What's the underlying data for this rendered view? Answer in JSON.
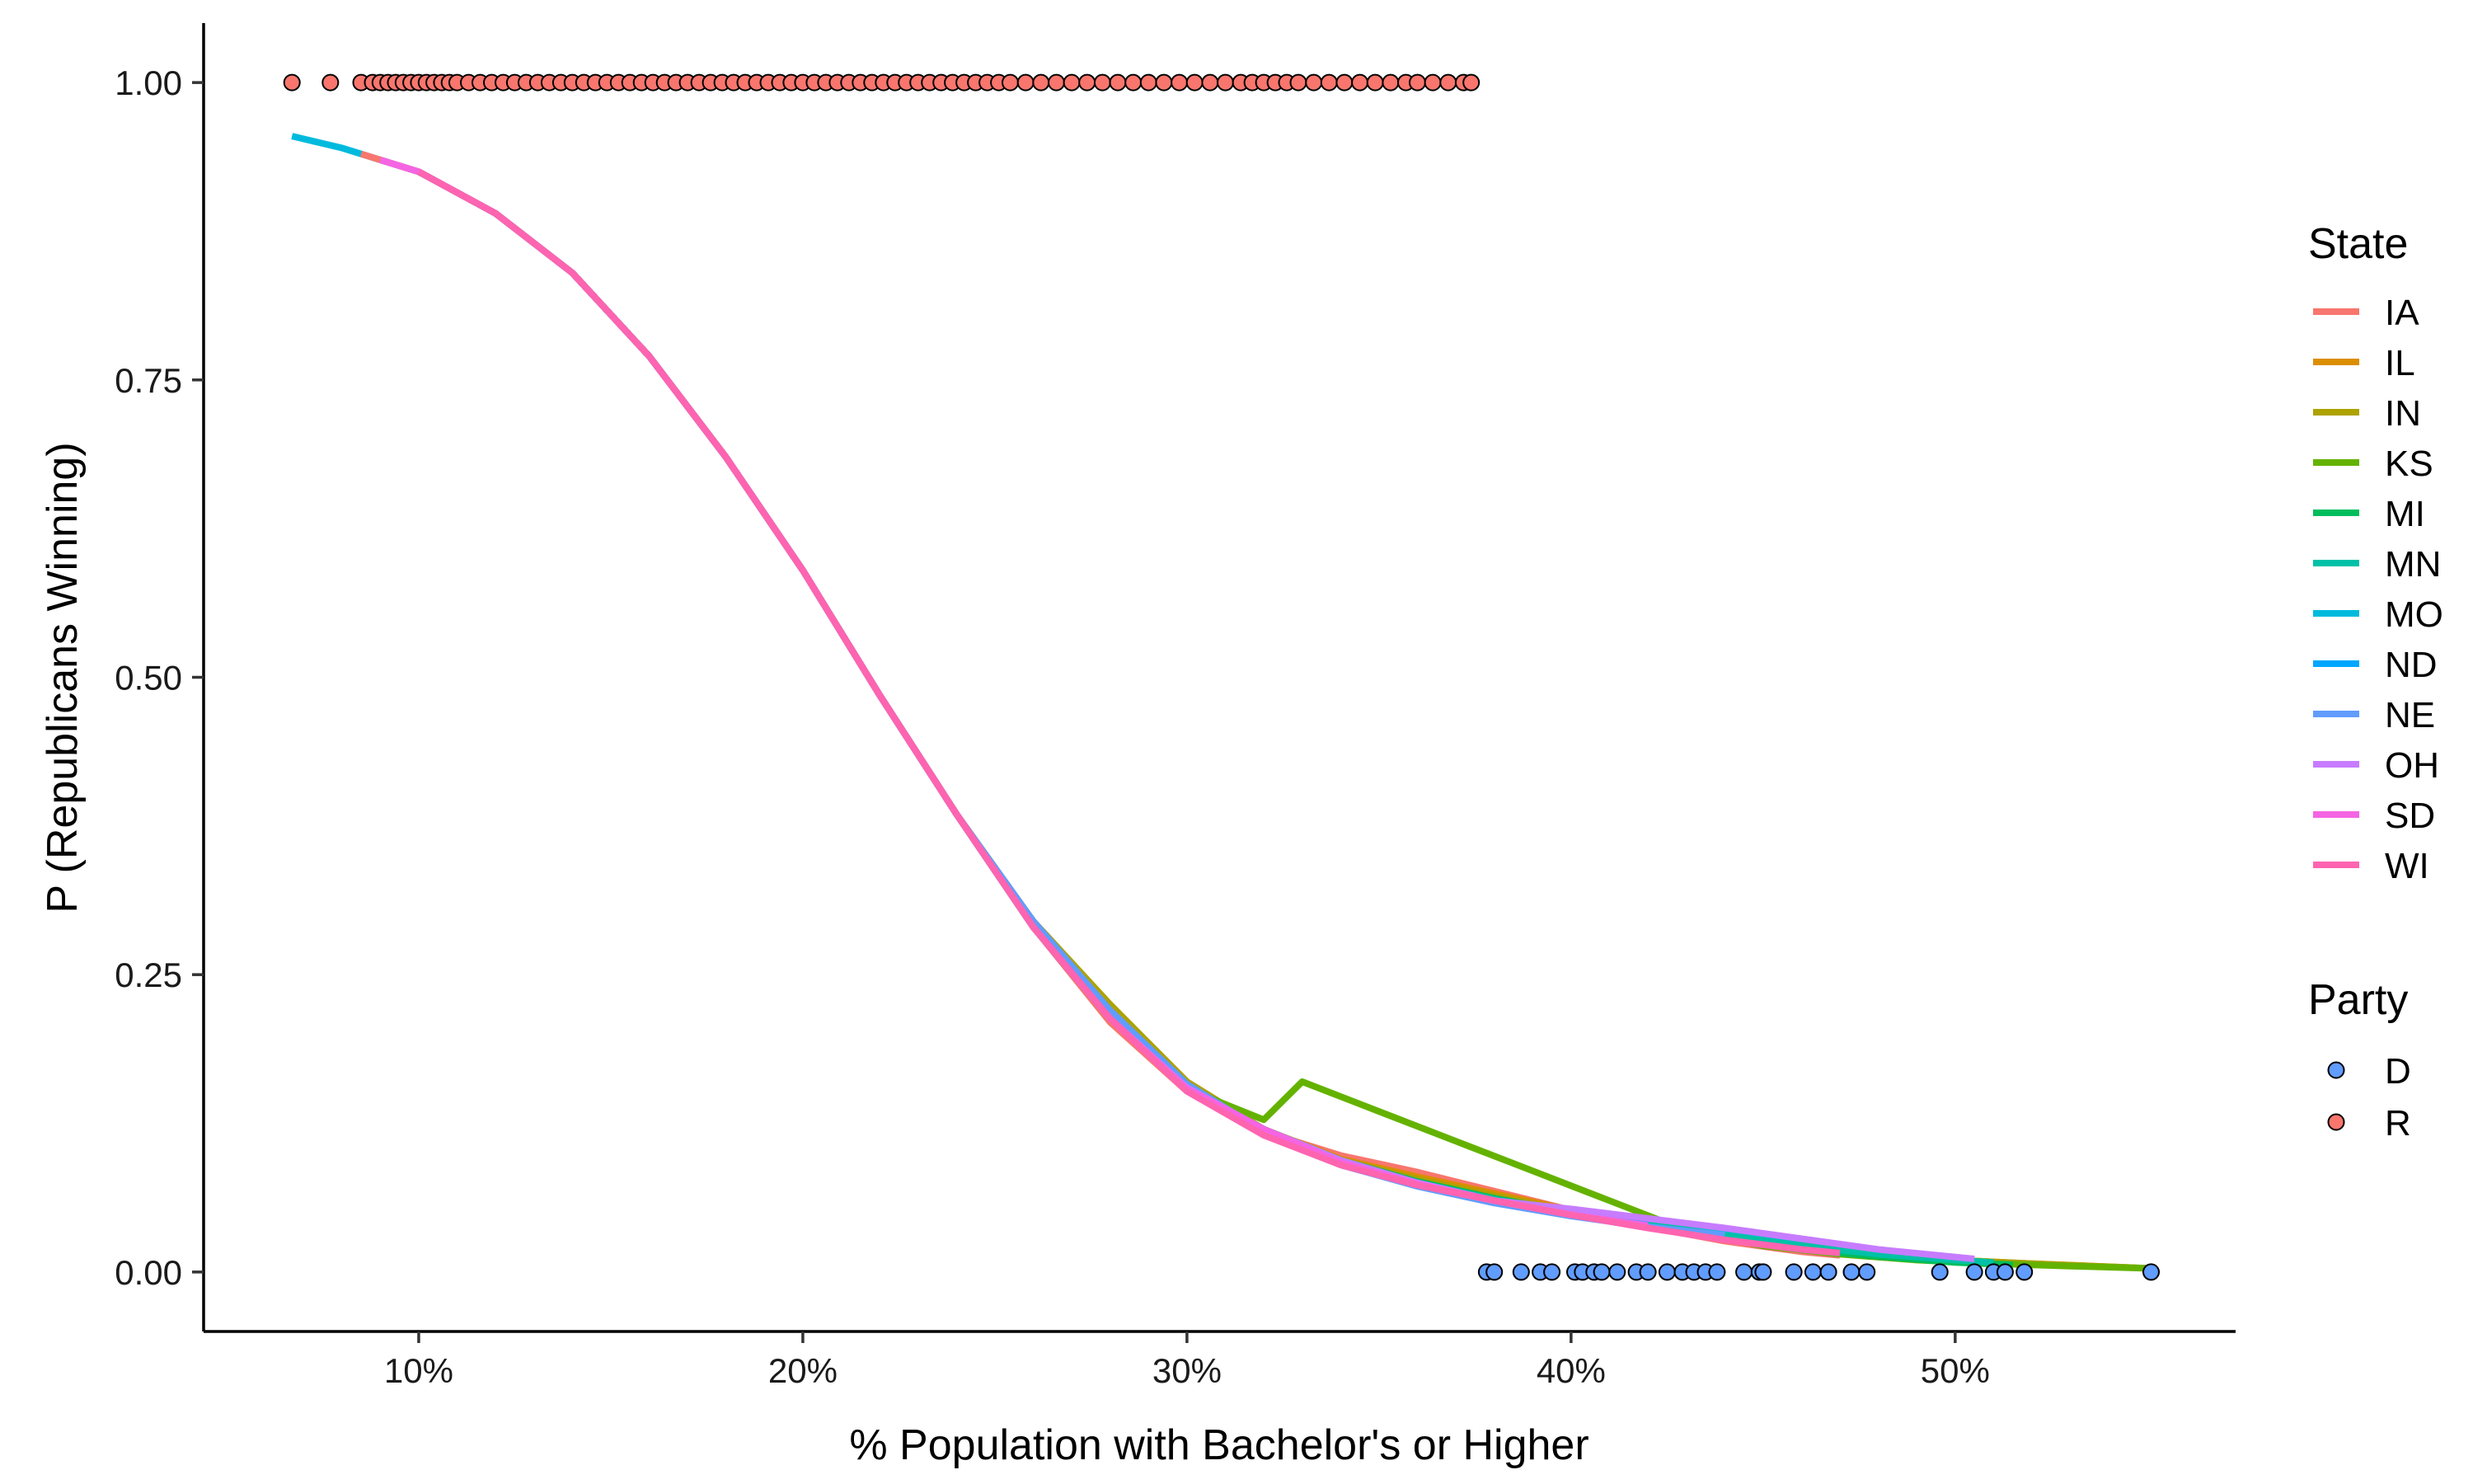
{
  "chart_data": {
    "type": "scatter",
    "xlabel": "% Population with Bachelor's or Higher",
    "ylabel": "P (Republicans Winning)",
    "xlim": [
      4.4,
      57.3
    ],
    "ylim": [
      -0.05,
      1.05
    ],
    "x_ticks": [
      {
        "value": 10,
        "label": "10%"
      },
      {
        "value": 20,
        "label": "20%"
      },
      {
        "value": 30,
        "label": "30%"
      },
      {
        "value": 40,
        "label": "40%"
      },
      {
        "value": 50,
        "label": "50%"
      }
    ],
    "y_ticks": [
      {
        "value": 0.0,
        "label": "0.00"
      },
      {
        "value": 0.25,
        "label": "0.25"
      },
      {
        "value": 0.5,
        "label": "0.50"
      },
      {
        "value": 0.75,
        "label": "0.75"
      },
      {
        "value": 1.0,
        "label": "1.00"
      }
    ],
    "grid": false,
    "legend_position": "right",
    "legends": {
      "state": {
        "title": "State",
        "entries": [
          {
            "label": "IA",
            "color": "#F8766D"
          },
          {
            "label": "IL",
            "color": "#DB8E00"
          },
          {
            "label": "IN",
            "color": "#AEA200"
          },
          {
            "label": "KS",
            "color": "#64B200"
          },
          {
            "label": "MI",
            "color": "#00BD5C"
          },
          {
            "label": "MN",
            "color": "#00C1A7"
          },
          {
            "label": "MO",
            "color": "#00BADE"
          },
          {
            "label": "ND",
            "color": "#00A6FF"
          },
          {
            "label": "NE",
            "color": "#619CFF"
          },
          {
            "label": "OH",
            "color": "#C77CFF"
          },
          {
            "label": "SD",
            "color": "#F564E3"
          },
          {
            "label": "WI",
            "color": "#FF64B0"
          }
        ]
      },
      "party": {
        "title": "Party",
        "entries": [
          {
            "label": "D",
            "color": "#619CFF"
          },
          {
            "label": "R",
            "color": "#F8766D"
          }
        ]
      }
    },
    "point_series": [
      {
        "name": "R",
        "color": "#F8766D",
        "y": 1.0,
        "x": [
          6.7,
          7.7,
          8.5,
          8.8,
          9.0,
          9.2,
          9.4,
          9.6,
          9.8,
          10.0,
          10.2,
          10.4,
          10.6,
          10.8,
          11.0,
          11.3,
          11.6,
          11.9,
          12.2,
          12.5,
          12.8,
          13.1,
          13.4,
          13.7,
          14.0,
          14.3,
          14.6,
          14.9,
          15.2,
          15.5,
          15.8,
          16.1,
          16.4,
          16.7,
          17.0,
          17.3,
          17.6,
          17.9,
          18.2,
          18.5,
          18.8,
          19.1,
          19.4,
          19.7,
          20.0,
          20.3,
          20.6,
          20.9,
          21.2,
          21.5,
          21.8,
          22.1,
          22.4,
          22.7,
          23.0,
          23.3,
          23.6,
          23.9,
          24.2,
          24.5,
          24.8,
          25.1,
          25.4,
          25.8,
          26.2,
          26.6,
          27.0,
          27.4,
          27.8,
          28.2,
          28.6,
          29.0,
          29.4,
          29.8,
          30.2,
          30.6,
          31.0,
          31.4,
          31.7,
          32.0,
          32.3,
          32.6,
          32.9,
          33.3,
          33.7,
          34.1,
          34.5,
          34.9,
          35.3,
          35.7,
          36.0,
          36.4,
          36.8,
          37.2,
          37.4
        ]
      },
      {
        "name": "D",
        "color": "#619CFF",
        "y": 0.0,
        "x": [
          37.8,
          38.0,
          38.7,
          39.2,
          39.5,
          40.1,
          40.3,
          40.6,
          40.8,
          41.2,
          41.7,
          42.0,
          42.5,
          42.9,
          43.2,
          43.5,
          43.8,
          44.5,
          44.9,
          45.0,
          45.8,
          46.3,
          46.7,
          47.3,
          47.7,
          49.6,
          50.5,
          51.0,
          51.3,
          51.8,
          55.1
        ]
      }
    ],
    "curves": [
      {
        "name": "MO",
        "color": "#00BADE",
        "x": [
          6.7,
          8.0,
          9.0,
          10.0,
          12.0,
          14.0,
          16.0,
          18.0,
          20.0,
          22.0,
          24.0,
          26.0,
          28.0,
          30.0,
          32.0,
          34.0,
          36.0,
          38.0,
          40.0,
          42.0,
          44.0,
          46.0,
          48.0,
          50.0,
          51.0
        ],
        "y": [
          0.955,
          0.945,
          0.935,
          0.925,
          0.89,
          0.84,
          0.77,
          0.685,
          0.59,
          0.485,
          0.385,
          0.29,
          0.215,
          0.155,
          0.12,
          0.092,
          0.075,
          0.062,
          0.052,
          0.044,
          0.034,
          0.025,
          0.017,
          0.01,
          0.008
        ]
      },
      {
        "name": "IA",
        "color": "#F8766D",
        "x": [
          8.5,
          10.0,
          12.0,
          14.0,
          16.0,
          18.0,
          20.0,
          22.0,
          24.0,
          26.0,
          28.0,
          30.0,
          32.0,
          34.0,
          36.0,
          38.0,
          40.0,
          42.0,
          44.0,
          46.0,
          47.0
        ],
        "y": [
          0.94,
          0.925,
          0.89,
          0.84,
          0.77,
          0.685,
          0.59,
          0.485,
          0.385,
          0.29,
          0.21,
          0.152,
          0.118,
          0.098,
          0.084,
          0.068,
          0.052,
          0.038,
          0.026,
          0.017,
          0.014
        ]
      },
      {
        "name": "IL",
        "color": "#DB8E00",
        "x": [
          9.0,
          10.0,
          12.0,
          14.0,
          16.0,
          18.0,
          20.0,
          22.0,
          24.0,
          26.0,
          28.0,
          30.0,
          32.0,
          34.0,
          36.0,
          38.0,
          40.0,
          42.0,
          44.0,
          46.0,
          48.0,
          50.0,
          52.0,
          55.1
        ],
        "y": [
          0.935,
          0.925,
          0.89,
          0.84,
          0.77,
          0.685,
          0.59,
          0.485,
          0.385,
          0.29,
          0.213,
          0.154,
          0.12,
          0.095,
          0.08,
          0.066,
          0.052,
          0.04,
          0.03,
          0.022,
          0.015,
          0.01,
          0.007,
          0.003
        ]
      },
      {
        "name": "IN",
        "color": "#AEA200",
        "x": [
          9.0,
          10.0,
          12.0,
          14.0,
          16.0,
          18.0,
          20.0,
          22.0,
          24.0,
          26.0,
          28.0,
          30.0,
          32.0,
          34.0,
          36.0,
          38.0,
          40.0,
          42.0,
          44.0,
          46.0,
          48.0,
          50.0,
          52.0,
          55.1
        ],
        "y": [
          0.935,
          0.925,
          0.89,
          0.84,
          0.77,
          0.685,
          0.59,
          0.485,
          0.385,
          0.295,
          0.225,
          0.16,
          0.12,
          0.094,
          0.078,
          0.064,
          0.051,
          0.04,
          0.03,
          0.022,
          0.015,
          0.01,
          0.007,
          0.003
        ]
      },
      {
        "name": "KS",
        "color": "#64B200",
        "x": [
          12.0,
          14.0,
          16.0,
          18.0,
          20.0,
          22.0,
          24.0,
          26.0,
          28.0,
          30.0,
          32.0,
          33.0,
          35.0,
          37.0,
          39.0,
          41.0,
          43.0,
          45.0,
          47.0,
          49.0,
          51.0,
          53.0,
          55.1
        ],
        "y": [
          0.89,
          0.84,
          0.77,
          0.685,
          0.59,
          0.485,
          0.385,
          0.29,
          0.213,
          0.154,
          0.128,
          0.16,
          0.135,
          0.11,
          0.085,
          0.06,
          0.035,
          0.022,
          0.015,
          0.01,
          0.007,
          0.005,
          0.003
        ]
      },
      {
        "name": "MI",
        "color": "#00BD5C",
        "x": [
          10.0,
          12.0,
          14.0,
          16.0,
          18.0,
          20.0,
          22.0,
          24.0,
          26.0,
          28.0,
          30.0,
          32.0,
          34.0,
          36.0,
          38.0,
          40.0,
          42.0,
          44.0,
          46.0,
          48.0,
          50.0,
          51.5
        ],
        "y": [
          0.925,
          0.89,
          0.84,
          0.77,
          0.685,
          0.59,
          0.485,
          0.385,
          0.29,
          0.213,
          0.154,
          0.12,
          0.094,
          0.076,
          0.062,
          0.05,
          0.038,
          0.028,
          0.019,
          0.013,
          0.008,
          0.006
        ]
      },
      {
        "name": "MN",
        "color": "#00C1A7",
        "x": [
          10.0,
          12.0,
          14.0,
          16.0,
          18.0,
          20.0,
          22.0,
          24.0,
          26.0,
          28.0,
          30.0,
          32.0,
          34.0,
          36.0,
          38.0,
          40.0,
          42.0,
          44.0,
          46.0,
          48.0,
          50.0,
          51.0
        ],
        "y": [
          0.925,
          0.89,
          0.84,
          0.77,
          0.685,
          0.59,
          0.485,
          0.385,
          0.29,
          0.213,
          0.154,
          0.12,
          0.093,
          0.075,
          0.061,
          0.05,
          0.04,
          0.031,
          0.022,
          0.015,
          0.01,
          0.008
        ]
      },
      {
        "name": "ND",
        "color": "#00A6FF",
        "x": [
          10.0,
          12.0,
          14.0,
          16.0,
          18.0,
          20.0,
          22.0,
          24.0,
          26.0,
          28.0,
          30.0,
          32.0,
          34.0,
          36.0,
          38.0,
          40.0,
          42.0
        ],
        "y": [
          0.925,
          0.89,
          0.84,
          0.77,
          0.685,
          0.59,
          0.485,
          0.385,
          0.29,
          0.213,
          0.154,
          0.118,
          0.092,
          0.074,
          0.06,
          0.049,
          0.04
        ]
      },
      {
        "name": "NE",
        "color": "#619CFF",
        "x": [
          10.0,
          12.0,
          14.0,
          16.0,
          18.0,
          20.0,
          22.0,
          24.0,
          26.0,
          28.0,
          30.0,
          32.0,
          34.0,
          36.0,
          38.0,
          40.0,
          42.0,
          44.0
        ],
        "y": [
          0.925,
          0.89,
          0.84,
          0.77,
          0.685,
          0.59,
          0.485,
          0.385,
          0.295,
          0.22,
          0.158,
          0.118,
          0.09,
          0.072,
          0.058,
          0.047,
          0.038,
          0.031
        ]
      },
      {
        "name": "OH",
        "color": "#C77CFF",
        "x": [
          9.0,
          10.0,
          12.0,
          14.0,
          16.0,
          18.0,
          20.0,
          22.0,
          24.0,
          26.0,
          28.0,
          30.0,
          32.0,
          34.0,
          36.0,
          38.0,
          40.0,
          42.0,
          44.0,
          46.0,
          48.0,
          50.5
        ],
        "y": [
          0.935,
          0.925,
          0.89,
          0.84,
          0.77,
          0.685,
          0.59,
          0.485,
          0.385,
          0.29,
          0.213,
          0.155,
          0.12,
          0.094,
          0.075,
          0.06,
          0.053,
          0.045,
          0.037,
          0.028,
          0.019,
          0.011
        ]
      },
      {
        "name": "SD",
        "color": "#F564E3",
        "x": [
          9.0,
          10.0,
          12.0,
          14.0,
          16.0,
          18.0,
          20.0,
          22.0,
          24.0,
          26.0,
          28.0,
          30.0,
          32.0,
          34.0,
          36.0,
          38.0,
          40.0,
          42.0
        ],
        "y": [
          0.935,
          0.925,
          0.89,
          0.84,
          0.77,
          0.685,
          0.59,
          0.485,
          0.385,
          0.29,
          0.213,
          0.154,
          0.12,
          0.092,
          0.074,
          0.06,
          0.048,
          0.039
        ]
      },
      {
        "name": "WI",
        "color": "#FF64B0",
        "x": [
          10.0,
          12.0,
          14.0,
          16.0,
          18.0,
          20.0,
          22.0,
          24.0,
          26.0,
          28.0,
          30.0,
          32.0,
          34.0,
          36.0,
          38.0,
          40.0,
          42.0,
          44.0,
          46.0,
          47.0
        ],
        "y": [
          0.925,
          0.89,
          0.84,
          0.77,
          0.685,
          0.59,
          0.485,
          0.385,
          0.29,
          0.213,
          0.152,
          0.115,
          0.09,
          0.073,
          0.06,
          0.048,
          0.037,
          0.027,
          0.019,
          0.016
        ]
      }
    ]
  }
}
